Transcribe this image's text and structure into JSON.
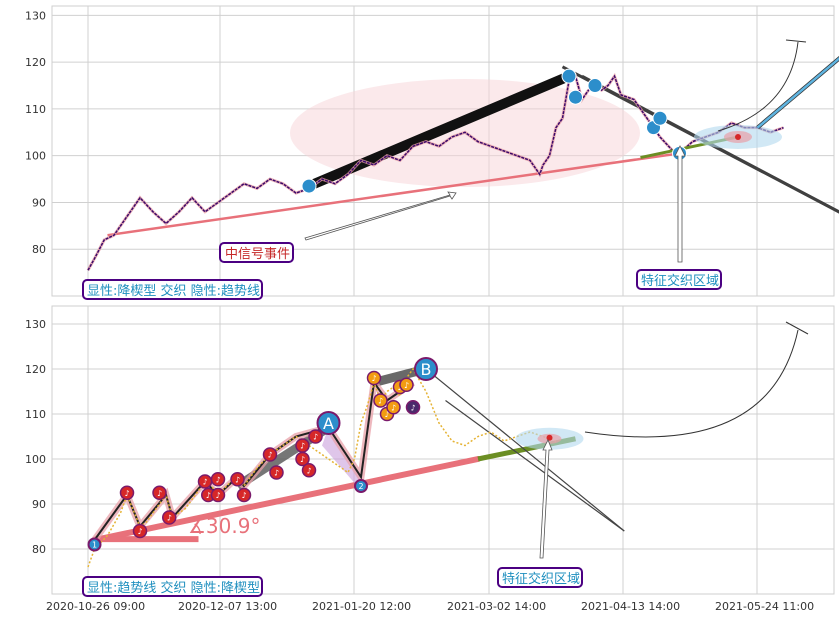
{
  "chart_data": [
    {
      "type": "line",
      "panel": "top",
      "ylim": [
        70,
        132
      ],
      "yticks": [
        80,
        90,
        100,
        110,
        120,
        130
      ],
      "grid": true,
      "price_series": [
        [
          0,
          75.5
        ],
        [
          2,
          78
        ],
        [
          5,
          82
        ],
        [
          8,
          83
        ],
        [
          12,
          87
        ],
        [
          16,
          91
        ],
        [
          20,
          88
        ],
        [
          24,
          85.5
        ],
        [
          28,
          88
        ],
        [
          32,
          91
        ],
        [
          36,
          88
        ],
        [
          40,
          90
        ],
        [
          44,
          92
        ],
        [
          48,
          94
        ],
        [
          52,
          93
        ],
        [
          56,
          95
        ],
        [
          60,
          94
        ],
        [
          64,
          92
        ],
        [
          68,
          93
        ],
        [
          72,
          95
        ],
        [
          76,
          94
        ],
        [
          80,
          96
        ],
        [
          84,
          99
        ],
        [
          88,
          98
        ],
        [
          92,
          100
        ],
        [
          96,
          99
        ],
        [
          100,
          102
        ],
        [
          104,
          103
        ],
        [
          108,
          102
        ],
        [
          112,
          104
        ],
        [
          116,
          105
        ],
        [
          120,
          103
        ],
        [
          124,
          102
        ],
        [
          128,
          101
        ],
        [
          132,
          100
        ],
        [
          136,
          99
        ],
        [
          138,
          97
        ],
        [
          139,
          96
        ],
        [
          140,
          98
        ],
        [
          142,
          100
        ],
        [
          144,
          106
        ],
        [
          146,
          108
        ],
        [
          148,
          116
        ],
        [
          150,
          117
        ],
        [
          152,
          112
        ],
        [
          154,
          114
        ],
        [
          156,
          115
        ],
        [
          158,
          114
        ],
        [
          160,
          115
        ],
        [
          162,
          117
        ],
        [
          164,
          113
        ],
        [
          168,
          112
        ],
        [
          172,
          108
        ],
        [
          176,
          104
        ],
        [
          180,
          101
        ],
        [
          182,
          100.5
        ],
        [
          186,
          103
        ],
        [
          190,
          104
        ],
        [
          194,
          105
        ],
        [
          198,
          107
        ],
        [
          202,
          106
        ],
        [
          206,
          106
        ],
        [
          210,
          105
        ],
        [
          214,
          106
        ]
      ],
      "trend_line": {
        "from": [
          6,
          83
        ],
        "to": [
          182,
          100.5
        ]
      },
      "wedge_upper": {
        "from": [
          146,
          119
        ],
        "to": [
          242,
          84
        ]
      },
      "wedge_lower": {
        "from": [
          152,
          117
        ],
        "to": [
          242,
          84
        ]
      },
      "pivots": [
        [
          68,
          93.5
        ],
        [
          148,
          117
        ],
        [
          150,
          112.5
        ],
        [
          156,
          115
        ],
        [
          174,
          106
        ],
        [
          176,
          108
        ],
        [
          182,
          100.5
        ]
      ],
      "signal_event": {
        "label": "中信号事件",
        "center": [
          125,
          110.5
        ]
      },
      "feature_zone": {
        "label": "特征交织区域",
        "center": [
          200,
          104
        ]
      },
      "forecast_line": {
        "from": [
          206,
          106
        ],
        "to": [
          240,
          126
        ]
      },
      "legend_text": "显性:降楔型 交织 隐性:趋势线"
    },
    {
      "type": "line",
      "panel": "bottom",
      "ylim": [
        70,
        134
      ],
      "yticks": [
        80,
        90,
        100,
        110,
        120,
        130
      ],
      "xticks": [
        "2020-10-26 09:00",
        "2020-12-07 13:00",
        "2021-01-20 12:00",
        "2021-03-02 14:00",
        "2021-04-13 14:00",
        "2021-05-24 11:00"
      ],
      "grid": true,
      "price_series": [
        [
          0,
          76
        ],
        [
          2,
          80
        ],
        [
          6,
          83
        ],
        [
          10,
          88
        ],
        [
          12,
          92
        ],
        [
          16,
          85
        ],
        [
          18,
          86
        ],
        [
          22,
          90
        ],
        [
          24,
          92
        ],
        [
          26,
          87
        ],
        [
          30,
          89
        ],
        [
          34,
          93
        ],
        [
          36,
          95
        ],
        [
          38,
          94
        ],
        [
          40,
          92
        ],
        [
          44,
          95
        ],
        [
          46,
          96
        ],
        [
          48,
          94
        ],
        [
          52,
          98
        ],
        [
          56,
          101
        ],
        [
          60,
          103
        ],
        [
          64,
          105
        ],
        [
          66,
          104
        ],
        [
          70,
          102
        ],
        [
          74,
          100
        ],
        [
          78,
          98
        ],
        [
          80,
          97
        ],
        [
          82,
          100
        ],
        [
          84,
          108
        ],
        [
          86,
          112
        ],
        [
          88,
          117
        ],
        [
          90,
          113
        ],
        [
          92,
          115
        ],
        [
          94,
          116
        ],
        [
          96,
          114
        ],
        [
          98,
          118
        ],
        [
          100,
          120
        ],
        [
          104,
          115
        ],
        [
          108,
          108
        ],
        [
          112,
          104
        ],
        [
          116,
          103
        ],
        [
          120,
          105
        ],
        [
          124,
          106
        ],
        [
          128,
          104
        ],
        [
          132,
          105
        ],
        [
          136,
          106
        ],
        [
          140,
          105
        ],
        [
          144,
          104
        ]
      ],
      "angle_label": "∡30.9°",
      "points": [
        {
          "x": 2,
          "y": 81,
          "label": "1"
        },
        {
          "x": 84,
          "y": 94,
          "label": "2"
        },
        {
          "x": 74,
          "y": 108,
          "label": "A"
        },
        {
          "x": 104,
          "y": 120,
          "label": "B"
        }
      ],
      "feature_zone": {
        "label": "特征交织区域"
      },
      "legend_text": "显性:趋势线 交织 隐性:降楔型"
    }
  ],
  "colors": {
    "grid": "#d0d0d0",
    "trend": "#e8717a",
    "wedge": "#404040",
    "point": "#2c8ecb",
    "label_border": "#4b0082",
    "label_text": "#1f8fbf",
    "signal_text": "#c62828",
    "green": "#6b8e23",
    "orange": "#f39c12",
    "gold": "#e5b334"
  }
}
